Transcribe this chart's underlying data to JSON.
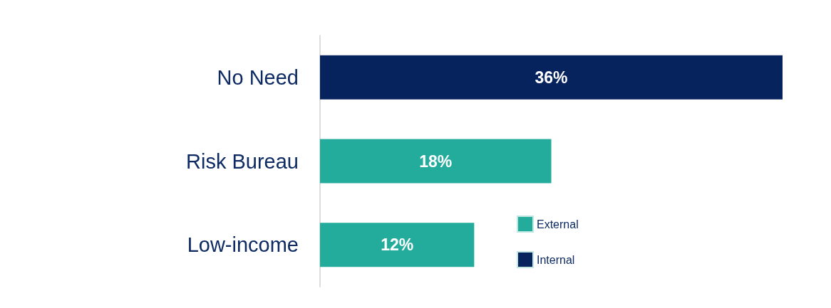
{
  "chart_data": {
    "type": "bar",
    "orientation": "horizontal",
    "stacked": true,
    "categories": [
      "No Need",
      "Risk Bureau",
      "Low-income"
    ],
    "series": [
      {
        "name": "External",
        "color": "#23ac9c",
        "values": [
          null,
          18,
          12
        ],
        "value_labels": [
          null,
          "18%",
          "12%"
        ]
      },
      {
        "name": "Internal",
        "color": "#06235e",
        "values": [
          36,
          null,
          null
        ],
        "value_labels": [
          "36%",
          null,
          null
        ]
      }
    ],
    "legend": "bottom right",
    "grid": false
  }
}
